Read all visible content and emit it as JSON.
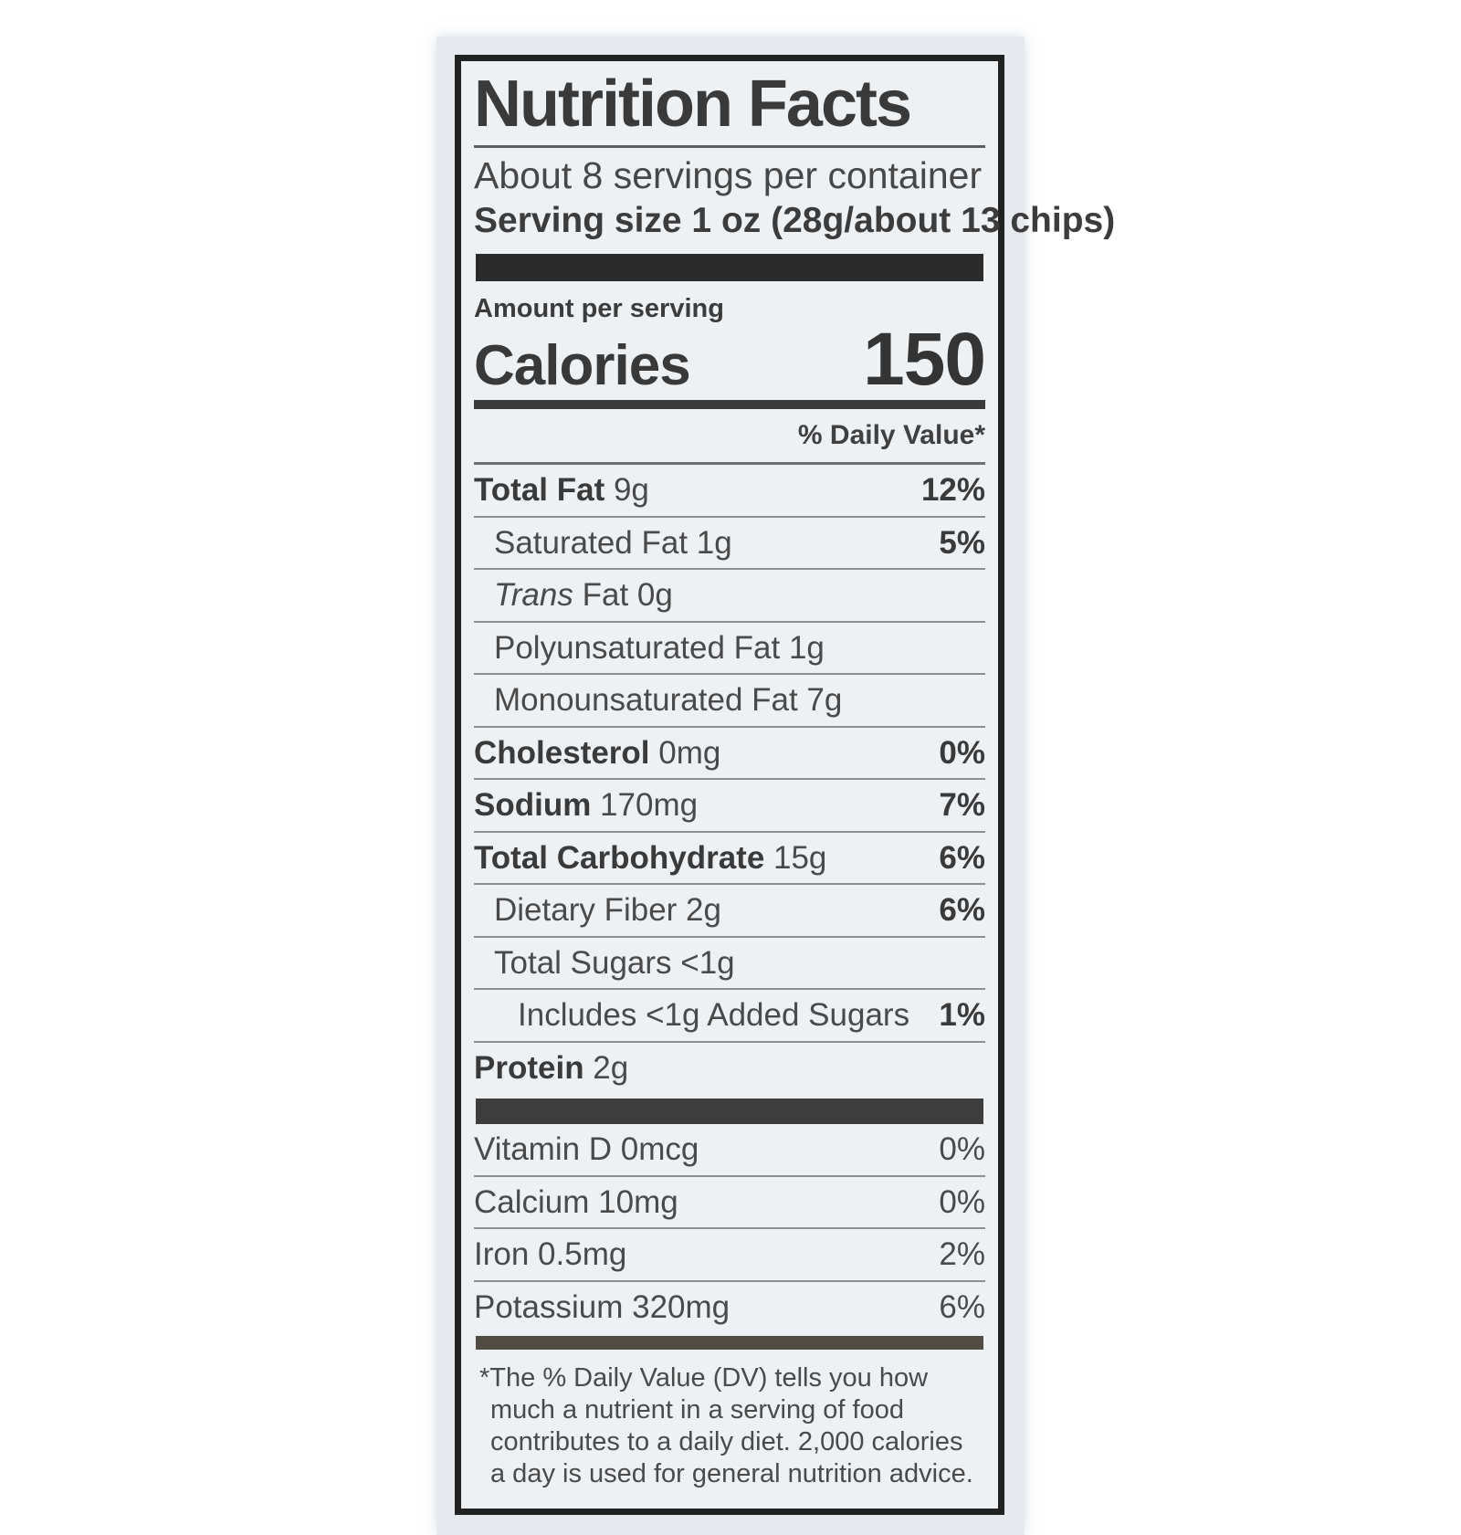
{
  "label": {
    "title": "Nutrition Facts",
    "servings_per_container": "About 8 servings per container",
    "serving_size": "Serving size 1 oz (28g/about 13 chips)",
    "amount_per_serving": "Amount per serving",
    "calories_label": "Calories",
    "calories_value": "150",
    "daily_value_header": "% Daily Value*",
    "rows": [
      {
        "bold": "Total Fat",
        "rest": " 9g",
        "dv": "12%"
      },
      {
        "rest": "Saturated Fat 1g",
        "dv": "5%"
      },
      {
        "italic": "Trans",
        "rest": " Fat 0g"
      },
      {
        "rest": "Polyunsaturated Fat 1g"
      },
      {
        "rest": "Monounsaturated Fat 7g"
      },
      {
        "bold": "Cholesterol",
        "rest": " 0mg",
        "dv": "0%"
      },
      {
        "bold": "Sodium",
        "rest": " 170mg",
        "dv": "7%"
      },
      {
        "bold": "Total Carbohydrate",
        "rest": " 15g",
        "dv": "6%"
      },
      {
        "rest": "Dietary Fiber 2g",
        "dv": "6%"
      },
      {
        "rest": "Total Sugars <1g"
      },
      {
        "rest": "Includes <1g Added Sugars",
        "dv": "1%"
      },
      {
        "bold": "Protein",
        "rest": " 2g"
      }
    ],
    "micronutrients": [
      {
        "rest": "Vitamin D 0mcg",
        "dv": "0%"
      },
      {
        "rest": "Calcium 10mg",
        "dv": "0%"
      },
      {
        "rest": "Iron 0.5mg",
        "dv": "2%"
      },
      {
        "rest": "Potassium 320mg",
        "dv": "6%"
      }
    ],
    "footnote": "*The % Daily Value (DV) tells you how much a nutrient in a serving of food contributes to a daily diet. 2,000 calories a day is used for general nutrition advice.",
    "colors": {
      "border": "#222222",
      "package_background": "#e6eaee",
      "label_background": "#eef1f4",
      "text": "#3f3f3f"
    }
  }
}
